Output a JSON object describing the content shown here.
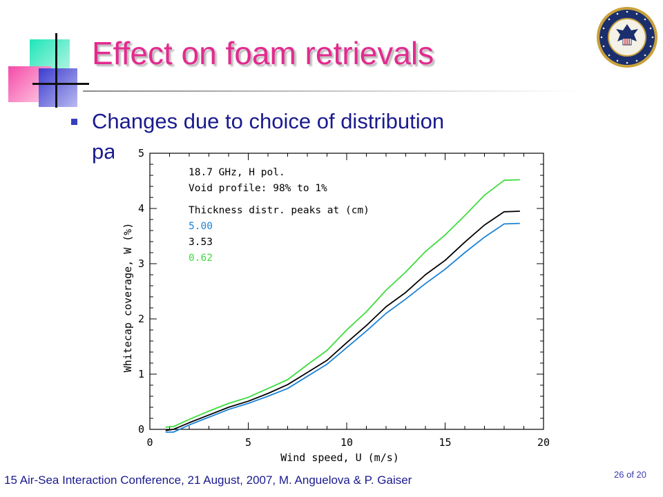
{
  "slide": {
    "title": "Effect on foam retrievals",
    "bullet": "Changes due to choice of distribution parameter",
    "footer": "15 Air-Sea Interaction Conference, 21 August, 2007, M. Anguelova & P. Gaiser",
    "page": "26 of 20",
    "logo_icon": "navy-research-laboratory-seal-icon"
  },
  "chart_data": {
    "type": "line",
    "xlabel": "Wind speed, U (m/s)",
    "ylabel": "Whitecap coverage, W (%)",
    "xlim": [
      0,
      20
    ],
    "ylim": [
      0,
      5
    ],
    "x_ticks": [
      "0",
      "5",
      "10",
      "15",
      "20"
    ],
    "y_ticks": [
      "0",
      "1",
      "2",
      "3",
      "4",
      "5"
    ],
    "legend_position": "top-left",
    "annotations": [
      "18.7 GHz, H pol.",
      "Void profile: 98% to 1%",
      "Thickness distr. peaks at (cm)"
    ],
    "series": [
      {
        "name": "5.00",
        "color": "#1a82d6",
        "x": [
          0.8,
          1.2,
          2,
          3,
          4,
          5,
          6,
          7,
          8,
          9,
          10,
          11,
          12,
          13,
          14,
          15,
          16,
          17,
          18,
          18.8
        ],
        "y": [
          -0.05,
          -0.05,
          0.08,
          0.22,
          0.36,
          0.47,
          0.6,
          0.74,
          0.96,
          1.18,
          1.48,
          1.78,
          2.1,
          2.36,
          2.64,
          2.9,
          3.2,
          3.48,
          3.72,
          3.73
        ]
      },
      {
        "name": "3.53",
        "color": "#000000",
        "x": [
          0.8,
          1.2,
          2,
          3,
          4,
          5,
          6,
          7,
          8,
          9,
          10,
          11,
          12,
          13,
          14,
          15,
          16,
          17,
          18,
          18.8
        ],
        "y": [
          -0.02,
          0.0,
          0.12,
          0.26,
          0.4,
          0.51,
          0.65,
          0.81,
          1.03,
          1.25,
          1.57,
          1.88,
          2.22,
          2.48,
          2.8,
          3.06,
          3.39,
          3.7,
          3.94,
          3.95
        ]
      },
      {
        "name": "0.62",
        "color": "#3ddc3d",
        "x": [
          0.8,
          1.2,
          2,
          3,
          4,
          5,
          6,
          7,
          8,
          9,
          10,
          11,
          12,
          13,
          14,
          15,
          16,
          17,
          18,
          18.8
        ],
        "y": [
          0.04,
          0.05,
          0.18,
          0.33,
          0.47,
          0.58,
          0.74,
          0.9,
          1.17,
          1.43,
          1.8,
          2.13,
          2.52,
          2.85,
          3.22,
          3.52,
          3.87,
          4.24,
          4.51,
          4.52
        ]
      }
    ]
  }
}
